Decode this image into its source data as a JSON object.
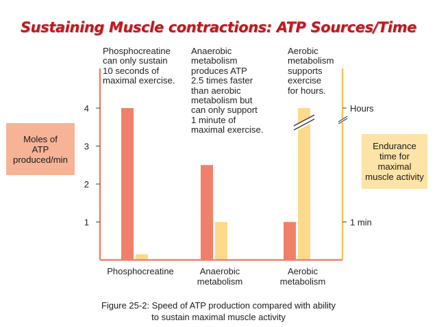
{
  "title": "Sustaining Muscle contractions: ATP Sources/Time",
  "annotations": {
    "phosphocreatine": "Phosphocreatine\ncan only sustain\n10 seconds of\nmaximal exercise.",
    "anaerobic": "Anaerobic\nmetabolism\nproduces ATP\n2.5 times faster\nthan aerobic\nmetabolism but\ncan only support\n1 minute of\nmaximal exercise.",
    "aerobic": "Aerobic\nmetabolism\nsupports\nexercise\nfor hours."
  },
  "left_axis_label": "Moles of\nATP\nproduced/min",
  "right_axis_label": "Endurance\ntime for\nmaximal\nmuscle activity",
  "caption": "Figure 25-2: Speed of ATP production compared with ability\nto sustain maximal muscle activity",
  "colors": {
    "atp_rate": "#f0806a",
    "endurance": "#fdd98c",
    "right_axis": "#f5c455",
    "title": "#c4161c"
  },
  "chart_data": {
    "type": "bar",
    "categories": [
      "Phosphocreatine",
      "Anaerobic\nmetabolism",
      "Aerobic\nmetabolism"
    ],
    "series": [
      {
        "axis": "left",
        "values": [
          4,
          2.5,
          1
        ]
      },
      {
        "axis": "right",
        "values": [
          "10 seconds",
          "1 min",
          "Hours"
        ]
      }
    ],
    "left_axis": {
      "ylim": [
        0,
        4
      ],
      "ticks": [
        "1",
        "2",
        "3",
        "4"
      ]
    },
    "right_axis": {
      "ticks": [
        "1 min",
        "Hours"
      ],
      "broken": true
    },
    "grid": false
  }
}
